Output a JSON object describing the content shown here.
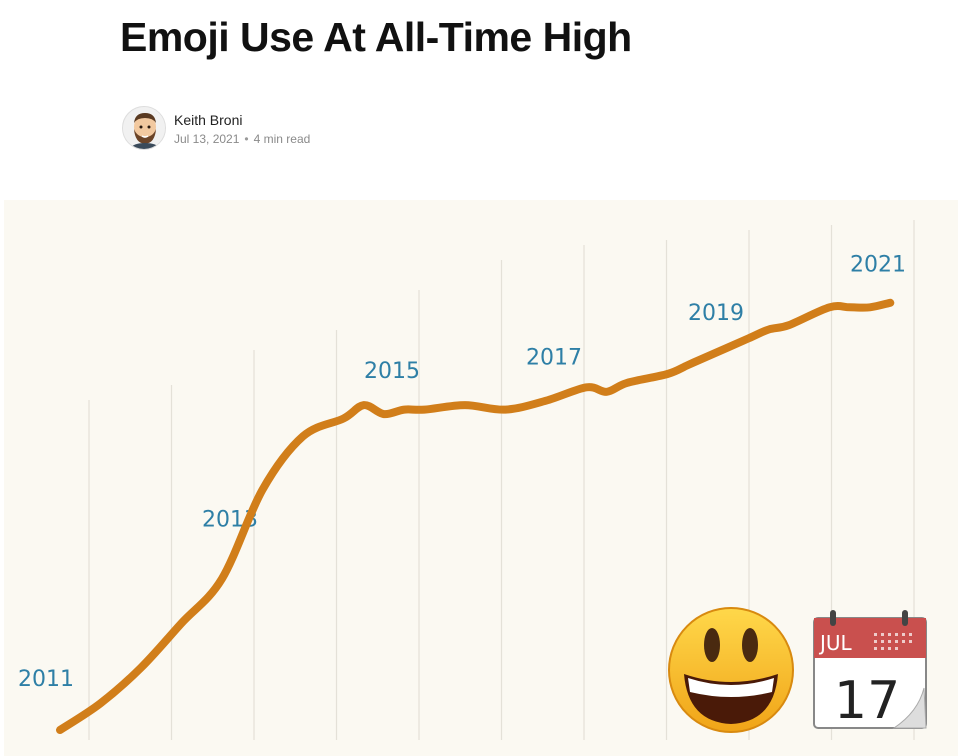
{
  "article": {
    "title": "Emoji Use At All-Time High",
    "author": "Keith Broni",
    "date": "Jul 13, 2021",
    "separator": "•",
    "read_time": "4 min read"
  },
  "hero": {
    "line_color": "#D17E1A",
    "label_color": "#2E7FA6",
    "background_color": "#FBF9F2",
    "decorations": [
      "grinning-face-emoji-icon",
      "calendar-emoji-icon"
    ],
    "calendar": {
      "month": "JUL",
      "day": "17"
    }
  },
  "chart_data": {
    "type": "line",
    "title": "",
    "xlabel": "",
    "ylabel": "",
    "x_labels": [
      "2011",
      "2013",
      "2015",
      "2017",
      "2019",
      "2021"
    ],
    "series": [
      {
        "x": [
          2011.0,
          2011.5,
          2012.0,
          2012.5,
          2013.0,
          2013.5,
          2014.0,
          2014.5,
          2014.75,
          2015.0,
          2015.25,
          2015.5,
          2016.0,
          2016.5,
          2017.0,
          2017.5,
          2017.75,
          2018.0,
          2018.5,
          2018.75,
          2019.0,
          2019.5,
          2019.75,
          2020.0,
          2020.5,
          2020.75,
          2021.0,
          2021.25
        ],
        "y": [
          0,
          6,
          14,
          24,
          34,
          54,
          66,
          70,
          73,
          71,
          72,
          72,
          73,
          72,
          74,
          77,
          76,
          78,
          80,
          82,
          84,
          88,
          90,
          91,
          95,
          95,
          95,
          96
        ]
      }
    ]
  }
}
